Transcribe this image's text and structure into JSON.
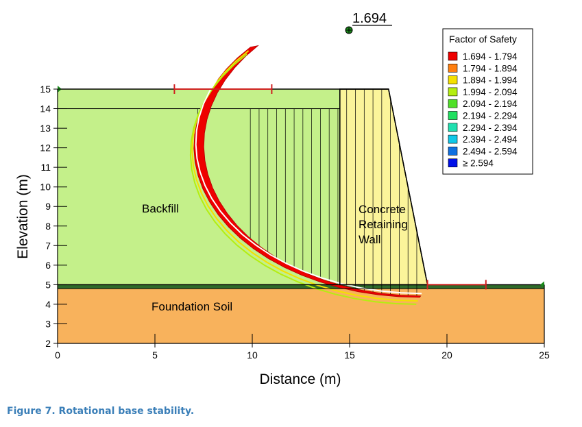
{
  "fos_min_label": "1.694",
  "legend": {
    "title": "Factor of Safety",
    "items": [
      {
        "label": "1.694 - 1.794",
        "color": "#ee0000"
      },
      {
        "label": "1.794 - 1.894",
        "color": "#ff7f10"
      },
      {
        "label": "1.894 - 1.994",
        "color": "#f4e000"
      },
      {
        "label": "1.994 - 2.094",
        "color": "#b4ee10"
      },
      {
        "label": "2.094 - 2.194",
        "color": "#50e028"
      },
      {
        "label": "2.194 - 2.294",
        "color": "#20e060"
      },
      {
        "label": "2.294 - 2.394",
        "color": "#20e0b0"
      },
      {
        "label": "2.394 - 2.494",
        "color": "#10c8e8"
      },
      {
        "label": "2.494 - 2.594",
        "color": "#1070e0"
      },
      {
        "label": "≥ 2.594",
        "color": "#0010e8"
      }
    ]
  },
  "regions": {
    "backfill": {
      "label": "Backfill",
      "color": "#c4f08a"
    },
    "wall": {
      "lines": [
        "Concrete",
        "Retaining",
        "Wall"
      ],
      "color": "#fbf49a"
    },
    "foundation": {
      "label": "Foundation Soil",
      "color": "#f8b25c"
    }
  },
  "axes": {
    "xlabel": "Distance (m)",
    "ylabel": "Elevation (m)",
    "xlim": [
      0,
      25
    ],
    "ylim": [
      2,
      15
    ],
    "xticks": [
      0,
      5,
      10,
      15,
      20,
      25
    ],
    "yticks": [
      2,
      3,
      4,
      5,
      6,
      7,
      8,
      9,
      10,
      11,
      12,
      13,
      14,
      15
    ]
  },
  "caption": "Figure 7.  Rotational base stability."
}
